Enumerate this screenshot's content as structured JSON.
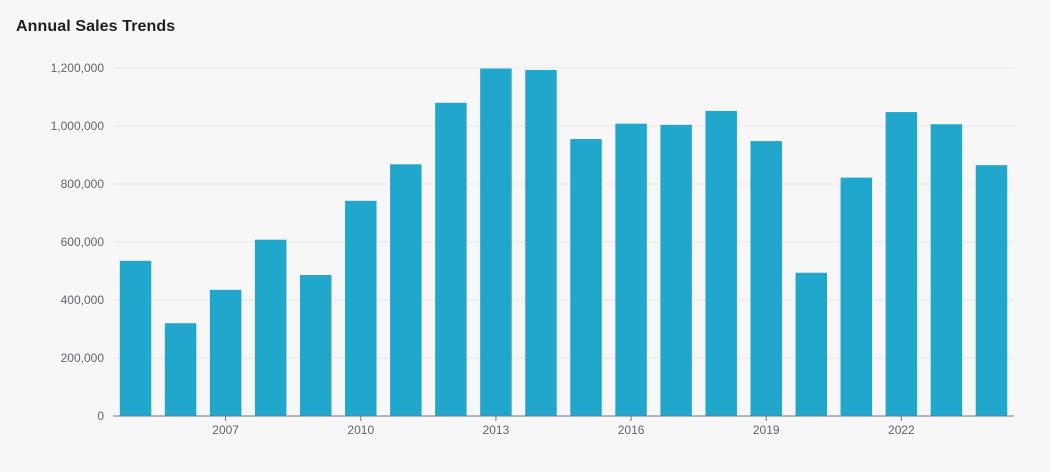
{
  "chart_data": {
    "type": "bar",
    "title": "Annual Sales Trends",
    "xlabel": "",
    "ylabel": "",
    "x": [
      2005,
      2006,
      2007,
      2008,
      2009,
      2010,
      2011,
      2012,
      2013,
      2014,
      2015,
      2016,
      2017,
      2018,
      2019,
      2020,
      2021,
      2022,
      2023,
      2024
    ],
    "values": [
      535000,
      320000,
      435000,
      608000,
      486000,
      742000,
      868000,
      1080000,
      1198000,
      1193000,
      955000,
      1008000,
      1004000,
      1052000,
      948000,
      494000,
      822000,
      1048000,
      1006000,
      865000
    ],
    "ylim": [
      0,
      1200000
    ],
    "y_ticks": [
      "0",
      "200,000",
      "400,000",
      "600,000",
      "800,000",
      "1,000,000",
      "1,200,000"
    ],
    "x_ticks": [
      "2007",
      "2010",
      "2013",
      "2016",
      "2019",
      "2022"
    ],
    "grid": true,
    "color": "#21a7cc"
  }
}
